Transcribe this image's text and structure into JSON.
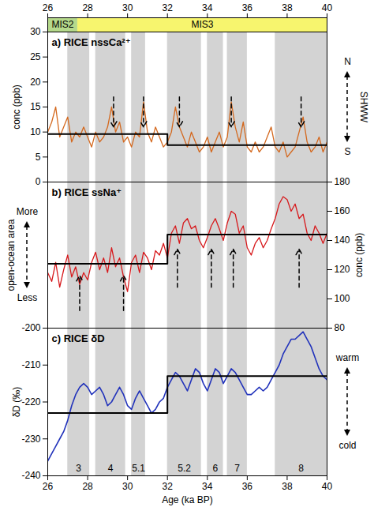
{
  "chart_data": [
    {
      "type": "line",
      "title": "a) RICE nssCa²⁺",
      "ylabel": "conc (ppb)",
      "xlim": [
        26,
        40
      ],
      "xticks": [
        26,
        28,
        30,
        32,
        34,
        36,
        38,
        40
      ],
      "ylim": [
        0,
        30
      ],
      "yticks": [
        0,
        5,
        10,
        15,
        20,
        25,
        30
      ],
      "tick_labels": true,
      "color": "#d4691f",
      "x": [
        26,
        26.2,
        26.4,
        26.6,
        26.8,
        27,
        27.2,
        27.4,
        27.6,
        27.8,
        28,
        28.2,
        28.4,
        28.6,
        28.8,
        29,
        29.2,
        29.4,
        29.6,
        29.8,
        30,
        30.2,
        30.4,
        30.6,
        30.8,
        31,
        31.2,
        31.4,
        31.6,
        31.8,
        32,
        32.2,
        32.4,
        32.6,
        32.8,
        33,
        33.2,
        33.4,
        33.6,
        33.8,
        34,
        34.2,
        34.4,
        34.6,
        34.8,
        35,
        35.2,
        35.4,
        35.6,
        35.8,
        36,
        36.2,
        36.4,
        36.6,
        36.8,
        37,
        37.2,
        37.4,
        37.6,
        37.8,
        38,
        38.2,
        38.4,
        38.6,
        38.8,
        39,
        39.2,
        39.4,
        39.6,
        39.8,
        40
      ],
      "values": [
        10,
        12,
        15,
        9,
        11,
        13,
        8,
        10,
        9,
        11,
        9,
        7,
        10,
        8,
        9,
        11,
        15,
        10,
        12,
        8,
        9,
        7,
        10,
        9,
        16,
        10,
        8,
        11,
        9,
        7,
        8,
        10,
        15,
        11,
        9,
        7,
        10,
        8,
        6,
        7,
        9,
        6,
        8,
        10,
        7,
        9,
        16,
        11,
        8,
        12,
        7,
        6,
        8,
        6,
        7,
        9,
        11,
        7,
        6,
        8,
        5,
        6,
        7,
        10,
        13,
        8,
        6,
        7,
        9,
        6,
        8
      ],
      "steps": {
        "x": [
          26,
          32,
          40
        ],
        "values": [
          9.6,
          7.4,
          7.4
        ]
      },
      "arrows": [
        {
          "x": 29.3,
          "y1": 17,
          "y2": 11
        },
        {
          "x": 30.8,
          "y1": 17,
          "y2": 11
        },
        {
          "x": 32.6,
          "y1": 17,
          "y2": 11
        },
        {
          "x": 35.2,
          "y1": 17,
          "y2": 11
        },
        {
          "x": 38.7,
          "y1": 17,
          "y2": 11
        }
      ],
      "side_labels": [
        "N",
        "SHWW",
        "S"
      ],
      "stages": [
        {
          "label": "MIS2",
          "x1": 26,
          "x2": 27.5,
          "color": "#b5d98b"
        },
        {
          "label": "MIS3",
          "x1": 27.5,
          "x2": 40,
          "color": "#f7f56e"
        }
      ]
    },
    {
      "type": "line",
      "title": "b) RICE ssNa⁺",
      "y2label": "conc (ppb)",
      "axis": "y2",
      "xlim": [
        26,
        40
      ],
      "xticks": [
        26,
        28,
        30,
        32,
        34,
        36,
        38,
        40
      ],
      "y2lim": [
        80,
        180
      ],
      "y2ticks": [
        80,
        100,
        120,
        140,
        160,
        180
      ],
      "tick_labels": "y",
      "color": "#d7191c",
      "x": [
        26,
        26.2,
        26.4,
        26.6,
        26.8,
        27,
        27.2,
        27.4,
        27.6,
        27.8,
        28,
        28.2,
        28.4,
        28.6,
        28.8,
        29,
        29.2,
        29.4,
        29.6,
        29.8,
        30,
        30.2,
        30.4,
        30.6,
        30.8,
        31,
        31.2,
        31.4,
        31.6,
        31.8,
        32,
        32.2,
        32.4,
        32.6,
        32.8,
        33,
        33.2,
        33.4,
        33.6,
        33.8,
        34,
        34.2,
        34.4,
        34.6,
        34.8,
        35,
        35.2,
        35.4,
        35.6,
        35.8,
        36,
        36.2,
        36.4,
        36.6,
        36.8,
        37,
        37.2,
        37.4,
        37.6,
        37.8,
        38,
        38.2,
        38.4,
        38.6,
        38.8,
        39,
        39.2,
        39.4,
        39.6,
        39.8,
        40
      ],
      "values": [
        118,
        112,
        125,
        108,
        120,
        130,
        115,
        122,
        110,
        118,
        113,
        125,
        132,
        120,
        128,
        118,
        135,
        122,
        128,
        115,
        105,
        125,
        130,
        118,
        132,
        128,
        120,
        133,
        130,
        138,
        128,
        145,
        150,
        138,
        152,
        155,
        148,
        150,
        140,
        135,
        142,
        150,
        155,
        148,
        140,
        152,
        160,
        158,
        145,
        150,
        135,
        130,
        138,
        142,
        135,
        140,
        148,
        155,
        165,
        170,
        168,
        160,
        165,
        155,
        158,
        145,
        140,
        150,
        145,
        138,
        145
      ],
      "steps": {
        "x": [
          26,
          32,
          40
        ],
        "values": [
          124,
          144,
          144
        ]
      },
      "arrows": [
        {
          "x": 27.6,
          "y1": 92,
          "y2": 116
        },
        {
          "x": 29.8,
          "y1": 92,
          "y2": 116
        },
        {
          "x": 32.5,
          "y1": 108,
          "y2": 134
        },
        {
          "x": 34.2,
          "y1": 108,
          "y2": 134
        },
        {
          "x": 35.3,
          "y1": 108,
          "y2": 134
        },
        {
          "x": 38.6,
          "y1": 108,
          "y2": 134
        }
      ],
      "side_labels": [
        "More",
        "open-ocean area",
        "Less"
      ]
    },
    {
      "type": "line",
      "title": "c) RICE δD",
      "ylabel": "δD (‰)",
      "xlabel": "Age (ka BP)",
      "xlim": [
        26,
        40
      ],
      "xticks": [
        26,
        28,
        30,
        32,
        34,
        36,
        38,
        40
      ],
      "ylim": [
        -240,
        -200
      ],
      "yticks": [
        -240,
        -230,
        -220,
        -210,
        -200
      ],
      "tick_labels": true,
      "color": "#2233bb",
      "x": [
        26,
        26.2,
        26.4,
        26.6,
        26.8,
        27,
        27.2,
        27.4,
        27.6,
        27.8,
        28,
        28.2,
        28.4,
        28.6,
        28.8,
        29,
        29.2,
        29.4,
        29.6,
        29.8,
        30,
        30.2,
        30.4,
        30.6,
        30.8,
        31,
        31.2,
        31.4,
        31.6,
        31.8,
        32,
        32.2,
        32.4,
        32.6,
        32.8,
        33,
        33.2,
        33.4,
        33.6,
        33.8,
        34,
        34.2,
        34.4,
        34.6,
        34.8,
        35,
        35.2,
        35.4,
        35.6,
        35.8,
        36,
        36.2,
        36.4,
        36.6,
        36.8,
        37,
        37.2,
        37.4,
        37.6,
        37.8,
        38,
        38.2,
        38.4,
        38.6,
        38.8,
        39,
        39.2,
        39.4,
        39.6,
        39.8,
        40
      ],
      "values": [
        -236,
        -234,
        -232,
        -230,
        -228,
        -225,
        -221,
        -218,
        -216,
        -215,
        -216,
        -218,
        -217,
        -216,
        -218,
        -221,
        -220,
        -218,
        -216,
        -218,
        -221,
        -222,
        -219,
        -217,
        -219,
        -221,
        -223,
        -222,
        -220,
        -219,
        -216,
        -214,
        -212,
        -213,
        -215,
        -217,
        -214,
        -211,
        -212,
        -215,
        -217,
        -214,
        -211,
        -212,
        -215,
        -213,
        -211,
        -212,
        -214,
        -216,
        -218,
        -218,
        -217,
        -216,
        -217,
        -216,
        -214,
        -212,
        -210,
        -207,
        -205,
        -203,
        -203,
        -202,
        -201,
        -203,
        -205,
        -208,
        -211,
        -213,
        -214
      ],
      "steps": {
        "x": [
          26,
          32,
          40
        ],
        "values": [
          -223,
          -213,
          -213
        ]
      },
      "side_labels": [
        "warm",
        "cold"
      ],
      "events": [
        {
          "label": "3",
          "x1": 27.0,
          "x2": 28.1
        },
        {
          "label": "4",
          "x1": 28.4,
          "x2": 29.9
        },
        {
          "label": "5.1",
          "x1": 30.2,
          "x2": 30.9
        },
        {
          "label": "5.2",
          "x1": 32.0,
          "x2": 33.7
        },
        {
          "label": "6",
          "x1": 34.0,
          "x2": 34.8
        },
        {
          "label": "7",
          "x1": 35.0,
          "x2": 36.0
        },
        {
          "label": "8",
          "x1": 37.4,
          "x2": 40.0
        }
      ]
    }
  ]
}
